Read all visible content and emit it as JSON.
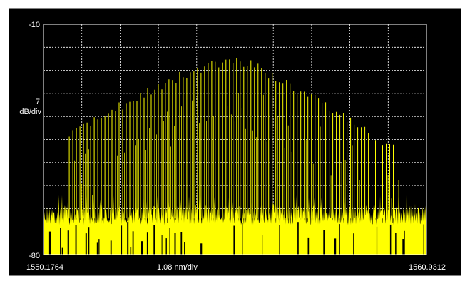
{
  "chart_data": {
    "type": "line",
    "title": "",
    "y_axis": {
      "top_label": "-10",
      "scale_value": "7",
      "scale_unit": "dB/div",
      "bottom_label": "-80",
      "ylim": [
        -80,
        -10
      ]
    },
    "x_axis": {
      "start_label": "1550.1764",
      "center_label": "1.08 nm/div",
      "end_label": "1560.9312",
      "xlim": [
        1550.1764,
        1560.9312
      ]
    },
    "grid": true,
    "grid_divisions": {
      "x": 10,
      "y": 10
    },
    "colors": {
      "trace": "#ffff00",
      "grid": "#ffffff",
      "background": "#000000"
    },
    "series": [
      {
        "type": "comb",
        "mode_spacing_nm": 0.1,
        "envelope": {
          "x": [
            1551.0,
            1552.0,
            1553.0,
            1554.0,
            1555.0,
            1555.5,
            1556.0,
            1557.0,
            1558.0,
            1559.0,
            1560.0
          ],
          "y": [
            -42.0,
            -37.0,
            -31.0,
            -26.0,
            -22.0,
            -21.0,
            -22.0,
            -28.0,
            -34.0,
            -40.0,
            -48.0
          ]
        },
        "noise_floor_range": [
          -80,
          -65
        ]
      }
    ]
  }
}
